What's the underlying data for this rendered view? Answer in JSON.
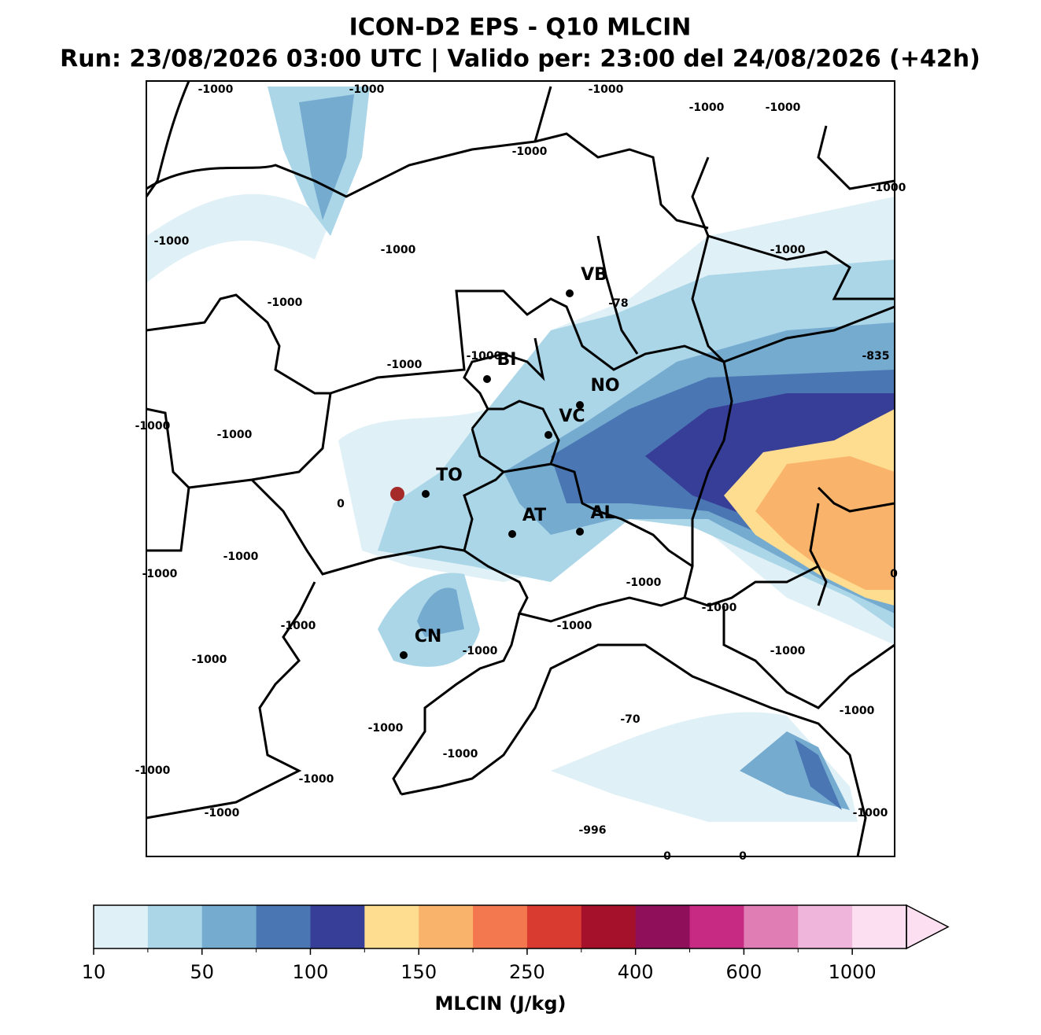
{
  "header": {
    "title": "ICON-D2 EPS - Q10 MLCIN",
    "subtitle": "Run: 23/08/2026 03:00 UTC | Valido per: 23:00 del 24/08/2026 (+42h)"
  },
  "map": {
    "cities": [
      "VB",
      "BI",
      "NO",
      "VC",
      "TO",
      "AT",
      "AL",
      "CN"
    ],
    "contour_labels": [
      -1000,
      -1000,
      -1000,
      -1000,
      -1000,
      -1000,
      -1000,
      -1000,
      -1000,
      -1000,
      -1000,
      -78,
      -1000,
      -835,
      -1000,
      -1000,
      -1000,
      0,
      -1000,
      -1000,
      0,
      -1000,
      -1000,
      -1000,
      -1000,
      -1000,
      -1000,
      -1000,
      -1000,
      -70,
      -1000,
      -1000,
      -1000,
      -1000,
      -1000,
      -1000,
      -996,
      0,
      0
    ]
  },
  "colorbar": {
    "label": "MLCIN (J/kg)",
    "ticks": [
      10,
      50,
      100,
      150,
      250,
      400,
      600,
      1000
    ],
    "colors": [
      "#dff0f7",
      "#abd6e8",
      "#76abd0",
      "#4a76b4",
      "#373e97",
      "#fedd90",
      "#fab36b",
      "#f3784f",
      "#d93b30",
      "#a5102a",
      "#900f5b",
      "#c62a83",
      "#df7db4",
      "#efb5da",
      "#fce0f1"
    ]
  }
}
